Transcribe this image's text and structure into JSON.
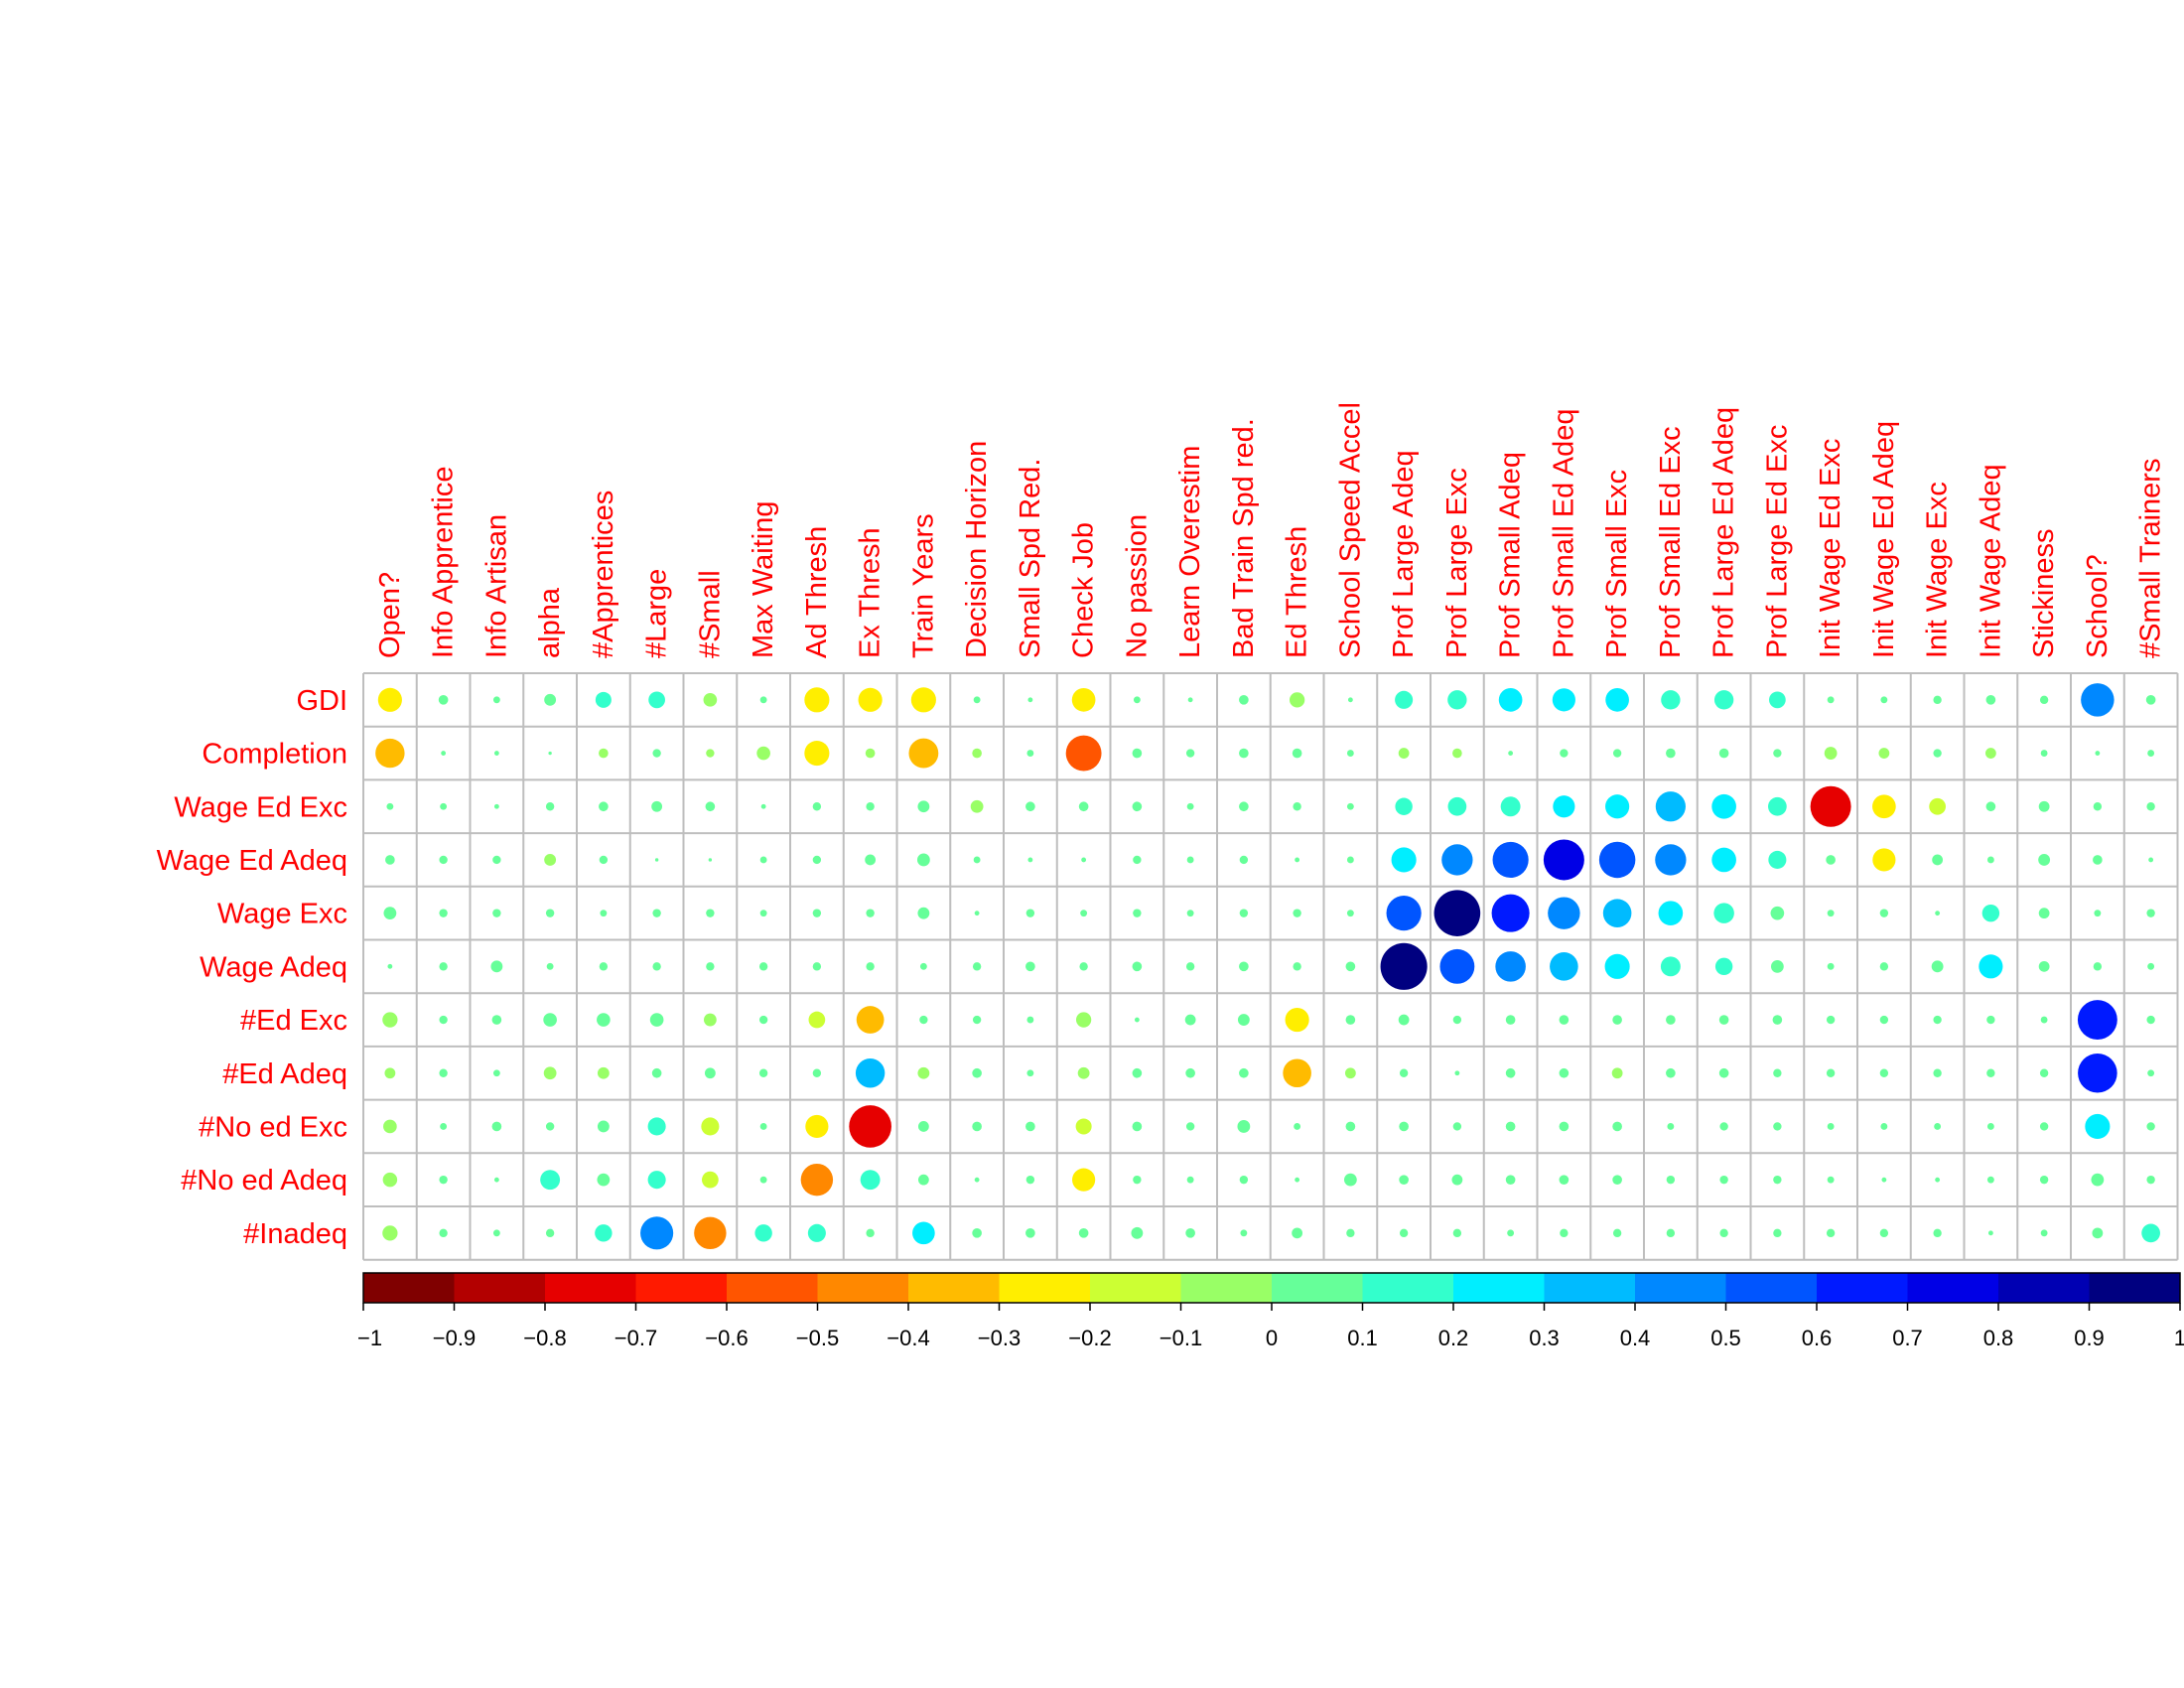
{
  "chart_data": {
    "type": "heatmap",
    "subtype": "correlation-circle-matrix",
    "columns": [
      "Open?",
      "Info Apprentice",
      "Info Artisan",
      "alpha",
      "#Apprentices",
      "#Large",
      "#Small",
      "Max Waiting",
      "Ad Thresh",
      "Ex Thresh",
      "Train Years",
      "Decision Horizon",
      "Small Spd Red.",
      "Check Job",
      "No passion",
      "Learn Overestim",
      "Bad Train Spd red.",
      "Ed Thresh",
      "School Speed Accel",
      "Prof Large Adeq",
      "Prof Large Exc",
      "Prof Small Adeq",
      "Prof Small Ed Adeq",
      "Prof Small Exc",
      "Prof Small Ed Exc",
      "Prof Large Ed Adeq",
      "Prof Large Ed Exc",
      "Init Wage Ed Exc",
      "Init Wage Ed Adeq",
      "Init Wage Exc",
      "Init Wage Adeq",
      "Stickiness",
      "School?",
      "#Small Trainers"
    ],
    "rows": [
      "GDI",
      "Completion",
      "Wage Ed Exc",
      "Wage Ed Adeq",
      "Wage Exc",
      "Wage Adeq",
      "#Ed Exc",
      "#Ed Adeq",
      "#No ed Exc",
      "#No ed Adeq",
      "#Inadeq"
    ],
    "values": [
      [
        -0.25,
        0.04,
        0.02,
        0.06,
        0.11,
        0.12,
        -0.08,
        0.02,
        -0.27,
        -0.25,
        -0.27,
        0.02,
        0.01,
        -0.24,
        0.02,
        0.01,
        0.04,
        -0.1,
        0.01,
        0.14,
        0.16,
        0.24,
        0.23,
        0.24,
        0.16,
        0.16,
        0.12,
        0.02,
        0.02,
        0.03,
        0.04,
        0.03,
        0.48,
        0.04
      ],
      [
        -0.37,
        0.01,
        0.01,
        0.005,
        -0.04,
        0.03,
        -0.03,
        -0.08,
        -0.27,
        -0.04,
        -0.38,
        -0.04,
        0.02,
        -0.55,
        0.04,
        0.03,
        0.04,
        0.04,
        0.02,
        -0.05,
        -0.04,
        0.01,
        0.03,
        0.03,
        0.04,
        0.04,
        0.03,
        -0.07,
        -0.05,
        0.03,
        -0.05,
        0.02,
        0.01,
        0.02
      ],
      [
        0.02,
        0.02,
        0.01,
        0.03,
        0.04,
        0.05,
        0.04,
        0.01,
        0.03,
        0.03,
        0.06,
        -0.07,
        0.04,
        0.04,
        0.04,
        0.02,
        0.04,
        0.03,
        0.02,
        0.13,
        0.15,
        0.17,
        0.21,
        0.25,
        0.39,
        0.26,
        0.15,
        -0.72,
        -0.24,
        -0.12,
        0.04,
        0.05,
        0.03,
        0.03
      ],
      [
        0.04,
        0.03,
        0.03,
        -0.06,
        0.03,
        0.005,
        0.005,
        0.02,
        0.03,
        0.05,
        0.07,
        0.02,
        0.01,
        0.01,
        0.03,
        0.02,
        0.03,
        0.01,
        0.02,
        0.27,
        0.42,
        0.56,
        0.72,
        0.57,
        0.42,
        0.26,
        0.14,
        0.04,
        -0.23,
        0.05,
        0.02,
        0.06,
        0.04,
        0.01
      ],
      [
        0.07,
        0.03,
        0.03,
        0.03,
        0.02,
        0.03,
        0.03,
        0.02,
        0.03,
        0.03,
        0.06,
        0.01,
        0.03,
        0.02,
        0.03,
        0.02,
        0.03,
        0.03,
        0.02,
        0.53,
        0.93,
        0.62,
        0.45,
        0.35,
        0.26,
        0.18,
        0.08,
        0.02,
        0.03,
        0.01,
        0.13,
        0.05,
        0.02,
        0.03
      ],
      [
        0.01,
        0.03,
        0.06,
        0.02,
        0.03,
        0.03,
        0.03,
        0.03,
        0.03,
        0.03,
        0.02,
        0.03,
        0.04,
        0.03,
        0.04,
        0.03,
        0.04,
        0.03,
        0.04,
        0.95,
        0.52,
        0.4,
        0.35,
        0.27,
        0.17,
        0.13,
        0.07,
        0.02,
        0.03,
        0.06,
        0.25,
        0.05,
        0.03,
        0.02
      ],
      [
        -0.1,
        0.03,
        0.04,
        0.08,
        0.08,
        0.08,
        -0.07,
        0.03,
        -0.12,
        -0.33,
        0.03,
        0.03,
        0.02,
        -0.1,
        0.01,
        0.05,
        0.06,
        -0.25,
        0.04,
        0.05,
        0.03,
        0.04,
        0.04,
        0.04,
        0.04,
        0.04,
        0.04,
        0.03,
        0.03,
        0.03,
        0.03,
        0.02,
        0.68,
        0.03
      ],
      [
        -0.05,
        0.03,
        0.02,
        -0.07,
        -0.06,
        0.04,
        0.05,
        0.03,
        0.03,
        0.37,
        -0.06,
        0.04,
        0.02,
        -0.06,
        0.04,
        0.04,
        0.04,
        -0.35,
        -0.05,
        0.03,
        0.01,
        0.04,
        0.04,
        -0.05,
        0.04,
        0.04,
        0.03,
        0.03,
        0.03,
        0.03,
        0.03,
        0.03,
        0.67,
        0.02
      ],
      [
        -0.08,
        0.02,
        0.04,
        0.03,
        0.06,
        0.14,
        -0.14,
        0.02,
        -0.23,
        -0.78,
        0.05,
        0.04,
        0.04,
        -0.11,
        0.04,
        0.03,
        0.07,
        0.02,
        0.04,
        0.04,
        0.03,
        0.04,
        0.04,
        0.04,
        0.02,
        0.03,
        0.03,
        0.02,
        0.02,
        0.02,
        0.02,
        0.03,
        0.27,
        0.03
      ],
      [
        -0.09,
        0.03,
        0.01,
        0.17,
        0.07,
        0.14,
        -0.12,
        0.02,
        -0.45,
        0.17,
        0.05,
        0.01,
        0.03,
        -0.23,
        0.03,
        0.02,
        0.03,
        0.01,
        0.07,
        0.04,
        0.05,
        0.04,
        0.04,
        0.04,
        0.03,
        0.03,
        0.03,
        0.02,
        0.01,
        0.01,
        0.02,
        0.03,
        0.07,
        0.03
      ],
      [
        -0.1,
        0.03,
        0.02,
        0.03,
        0.13,
        0.47,
        -0.45,
        0.13,
        0.14,
        0.03,
        0.22,
        0.04,
        0.04,
        0.04,
        0.06,
        0.04,
        0.02,
        0.05,
        0.03,
        0.03,
        0.03,
        0.02,
        0.03,
        0.03,
        0.03,
        0.03,
        0.03,
        0.03,
        0.03,
        0.03,
        0.01,
        0.02,
        0.05,
        0.15
      ]
    ],
    "colorbar": {
      "range": [
        -1,
        1
      ],
      "ticks": [
        "−1",
        "−0.9",
        "−0.8",
        "−0.7",
        "−0.6",
        "−0.5",
        "−0.4",
        "−0.3",
        "−0.2",
        "−0.1",
        "0",
        "0.1",
        "0.2",
        "0.3",
        "0.4",
        "0.5",
        "0.6",
        "0.7",
        "0.8",
        "0.9",
        "1"
      ],
      "colors": [
        "#800000",
        "#b30000",
        "#e60000",
        "#ff1a00",
        "#ff5500",
        "#ff8800",
        "#ffbb00",
        "#ffee00",
        "#ccff33",
        "#99ff66",
        "#66ff99",
        "#33ffcc",
        "#00eeff",
        "#00bbff",
        "#0088ff",
        "#0055ff",
        "#001aff",
        "#0000e6",
        "#0000b3",
        "#000080"
      ]
    },
    "label_color": "#ff0000",
    "grid_color": "#bebebe"
  }
}
